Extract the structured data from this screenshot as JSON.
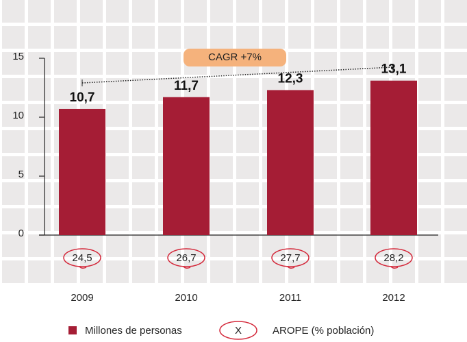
{
  "chart_data": {
    "type": "bar",
    "categories": [
      "2009",
      "2010",
      "2011",
      "2012"
    ],
    "series": [
      {
        "name": "Millones de personas",
        "color": "#a51d35",
        "values": [
          10.7,
          11.7,
          12.3,
          13.1
        ],
        "value_labels": [
          "10,7",
          "11,7",
          "12,3",
          "13,1"
        ]
      }
    ],
    "arope": {
      "name": "AROPE (% población)",
      "symbol": "X",
      "color": "#d42a3c",
      "values": [
        24.5,
        26.7,
        27.7,
        28.2
      ],
      "value_labels": [
        "24,5",
        "26,7",
        "27,7",
        "28,2"
      ]
    },
    "annotation": "CAGR +7%",
    "ylim": [
      0,
      15
    ],
    "yticks": [
      0,
      5,
      10,
      15
    ]
  }
}
